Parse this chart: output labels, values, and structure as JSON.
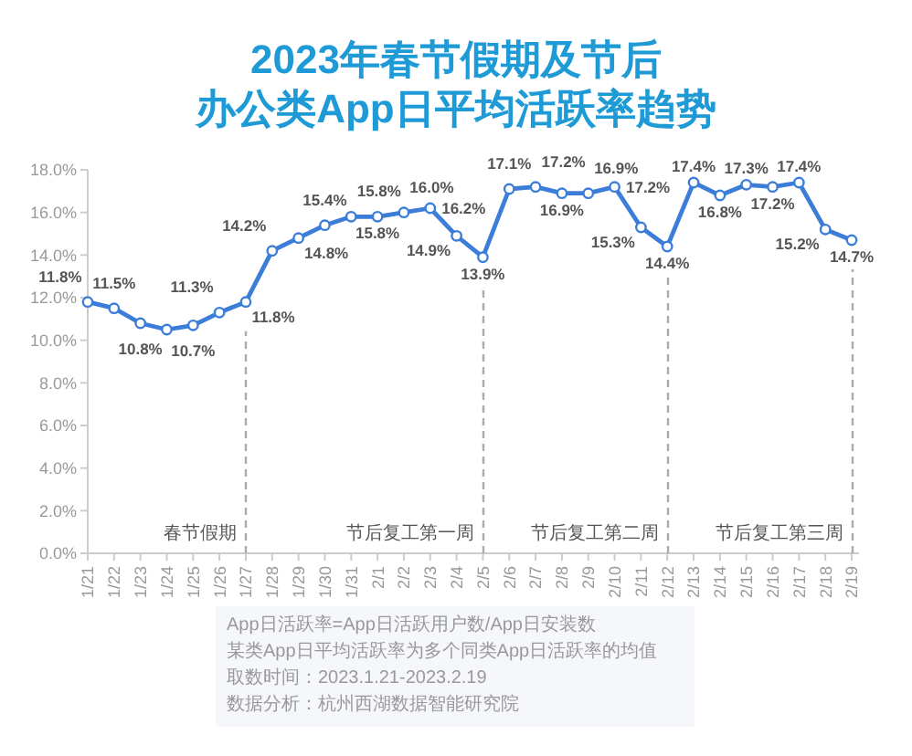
{
  "chart_data": {
    "type": "line",
    "title": "2023年春节假期及节后",
    "subtitle": "办公类App日平均活跃率趋势",
    "categories": [
      "1/21",
      "1/22",
      "1/23",
      "1/24",
      "1/25",
      "1/26",
      "1/27",
      "1/28",
      "1/29",
      "1/30",
      "1/31",
      "2/1",
      "2/2",
      "2/3",
      "2/4",
      "2/5",
      "2/6",
      "2/7",
      "2/8",
      "2/9",
      "2/10",
      "2/11",
      "2/12",
      "2/13",
      "2/14",
      "2/15",
      "2/16",
      "2/17",
      "2/18",
      "2/19"
    ],
    "series": [
      {
        "color": "#3b7dd8",
        "values": [
          11.8,
          11.5,
          10.8,
          10.5,
          10.7,
          11.3,
          11.8,
          14.2,
          14.8,
          15.4,
          15.8,
          15.8,
          16.0,
          16.2,
          14.9,
          13.9,
          17.1,
          17.2,
          16.9,
          16.9,
          17.2,
          15.3,
          14.4,
          17.4,
          16.8,
          17.3,
          17.2,
          17.4,
          15.2,
          14.7
        ],
        "value_labels": [
          "11.8%",
          "11.5%",
          "10.8%",
          null,
          "10.7%",
          "11.3%",
          "11.8%",
          "14.2%",
          "14.8%",
          "15.4%",
          "15.8%",
          "15.8%",
          "16.0%",
          "16.2%",
          "14.9%",
          "13.9%",
          "17.1%",
          "17.2%",
          "16.9%",
          "16.9%",
          "17.2%",
          "15.3%",
          "14.4%",
          "17.4%",
          "16.8%",
          "17.3%",
          "17.2%",
          "17.4%",
          "15.2%",
          "14.7%"
        ]
      }
    ],
    "ylim": [
      0,
      18
    ],
    "yticks": [
      {
        "value": 0,
        "label": "0.0%"
      },
      {
        "value": 2,
        "label": "2.0%"
      },
      {
        "value": 4,
        "label": "4.0%"
      },
      {
        "value": 6,
        "label": "6.0%"
      },
      {
        "value": 8,
        "label": "8.0%"
      },
      {
        "value": 10,
        "label": "10.0%"
      },
      {
        "value": 12,
        "label": "12.0%"
      },
      {
        "value": 14,
        "label": "14.0%"
      },
      {
        "value": 16,
        "label": "16.0%"
      },
      {
        "value": 18,
        "label": "18.0%"
      }
    ],
    "marker": "circle",
    "line_style": "solid",
    "ref_lines": [
      {
        "axis": "x",
        "value": "1/27",
        "label": "春节假期",
        "color": "#aaaaaa",
        "line_style": "dashed"
      },
      {
        "axis": "x",
        "value": "2/5",
        "label": "节后复工第一周",
        "color": "#aaaaaa",
        "line_style": "dashed"
      },
      {
        "axis": "x",
        "value": "2/12",
        "label": "节后复工第二周",
        "color": "#aaaaaa",
        "line_style": "dashed"
      },
      {
        "axis": "x",
        "value": "2/19",
        "label": "节后复工第三周",
        "color": "#aaaaaa",
        "line_style": "dashed"
      }
    ],
    "annotations": [
      "App日活跃率=App日活跃用户数/App日安装数",
      "某类App日平均活跃率为多个同类App日活跃率的均值",
      "取数时间：2023.1.21-2023.2.19",
      "数据分析：杭州西湖数据智能研究院"
    ]
  }
}
